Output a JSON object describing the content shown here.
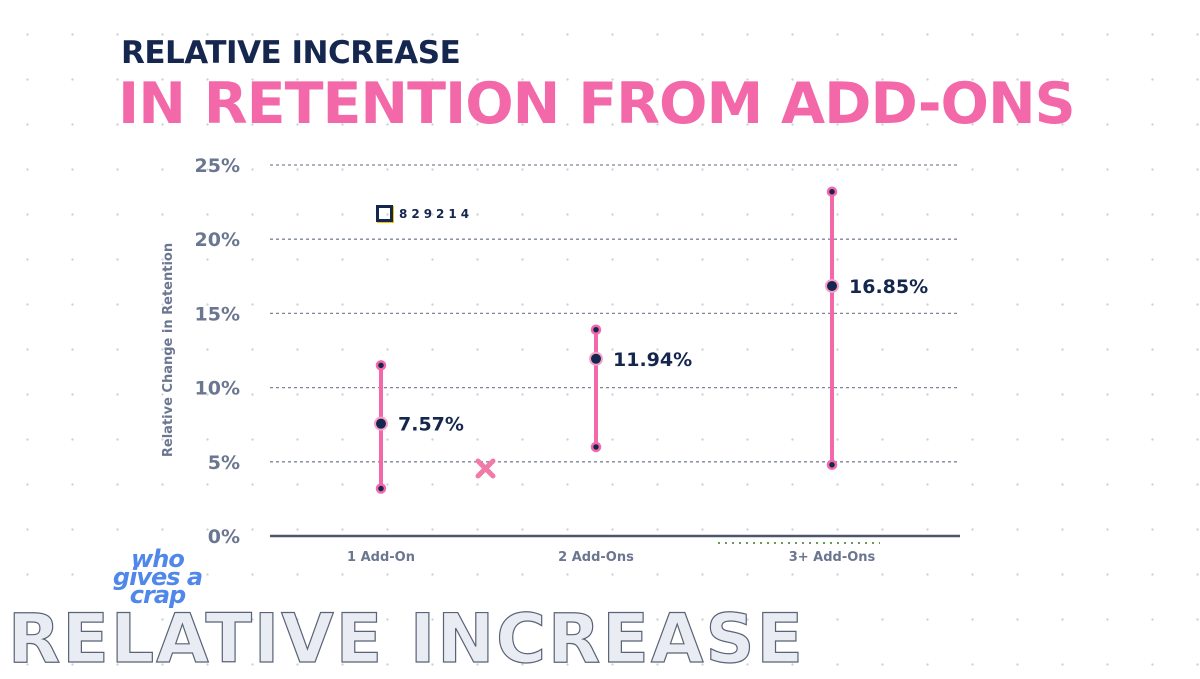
{
  "title": {
    "line1": "RELATIVE INCREASE",
    "line2": "IN RETENTION FROM ADD-ONS"
  },
  "code_label": "829214",
  "logo_text": "who gives a crap",
  "footer_outline_text": "RELATIVE INCREASE",
  "colors": {
    "accent_pink": "#f368a8",
    "navy": "#15264f",
    "axis_text": "#6b7690",
    "logo_blue": "#4f87ea"
  },
  "chart_data": {
    "type": "range-dot",
    "ylabel": "Relative Change in Retention",
    "ylim": [
      0,
      25
    ],
    "yticks": [
      "0%",
      "5%",
      "10%",
      "15%",
      "20%",
      "25%"
    ],
    "yticks_values": [
      0,
      5,
      10,
      15,
      20,
      25
    ],
    "grid": true,
    "categories": [
      "1 Add-On",
      "2 Add-Ons",
      "3+ Add-Ons"
    ],
    "values": [
      7.57,
      11.94,
      16.85
    ],
    "value_labels": [
      "7.57%",
      "11.94%",
      "16.85%"
    ],
    "low": [
      3.2,
      6.0,
      4.8
    ],
    "high": [
      11.5,
      13.9,
      23.2
    ]
  }
}
